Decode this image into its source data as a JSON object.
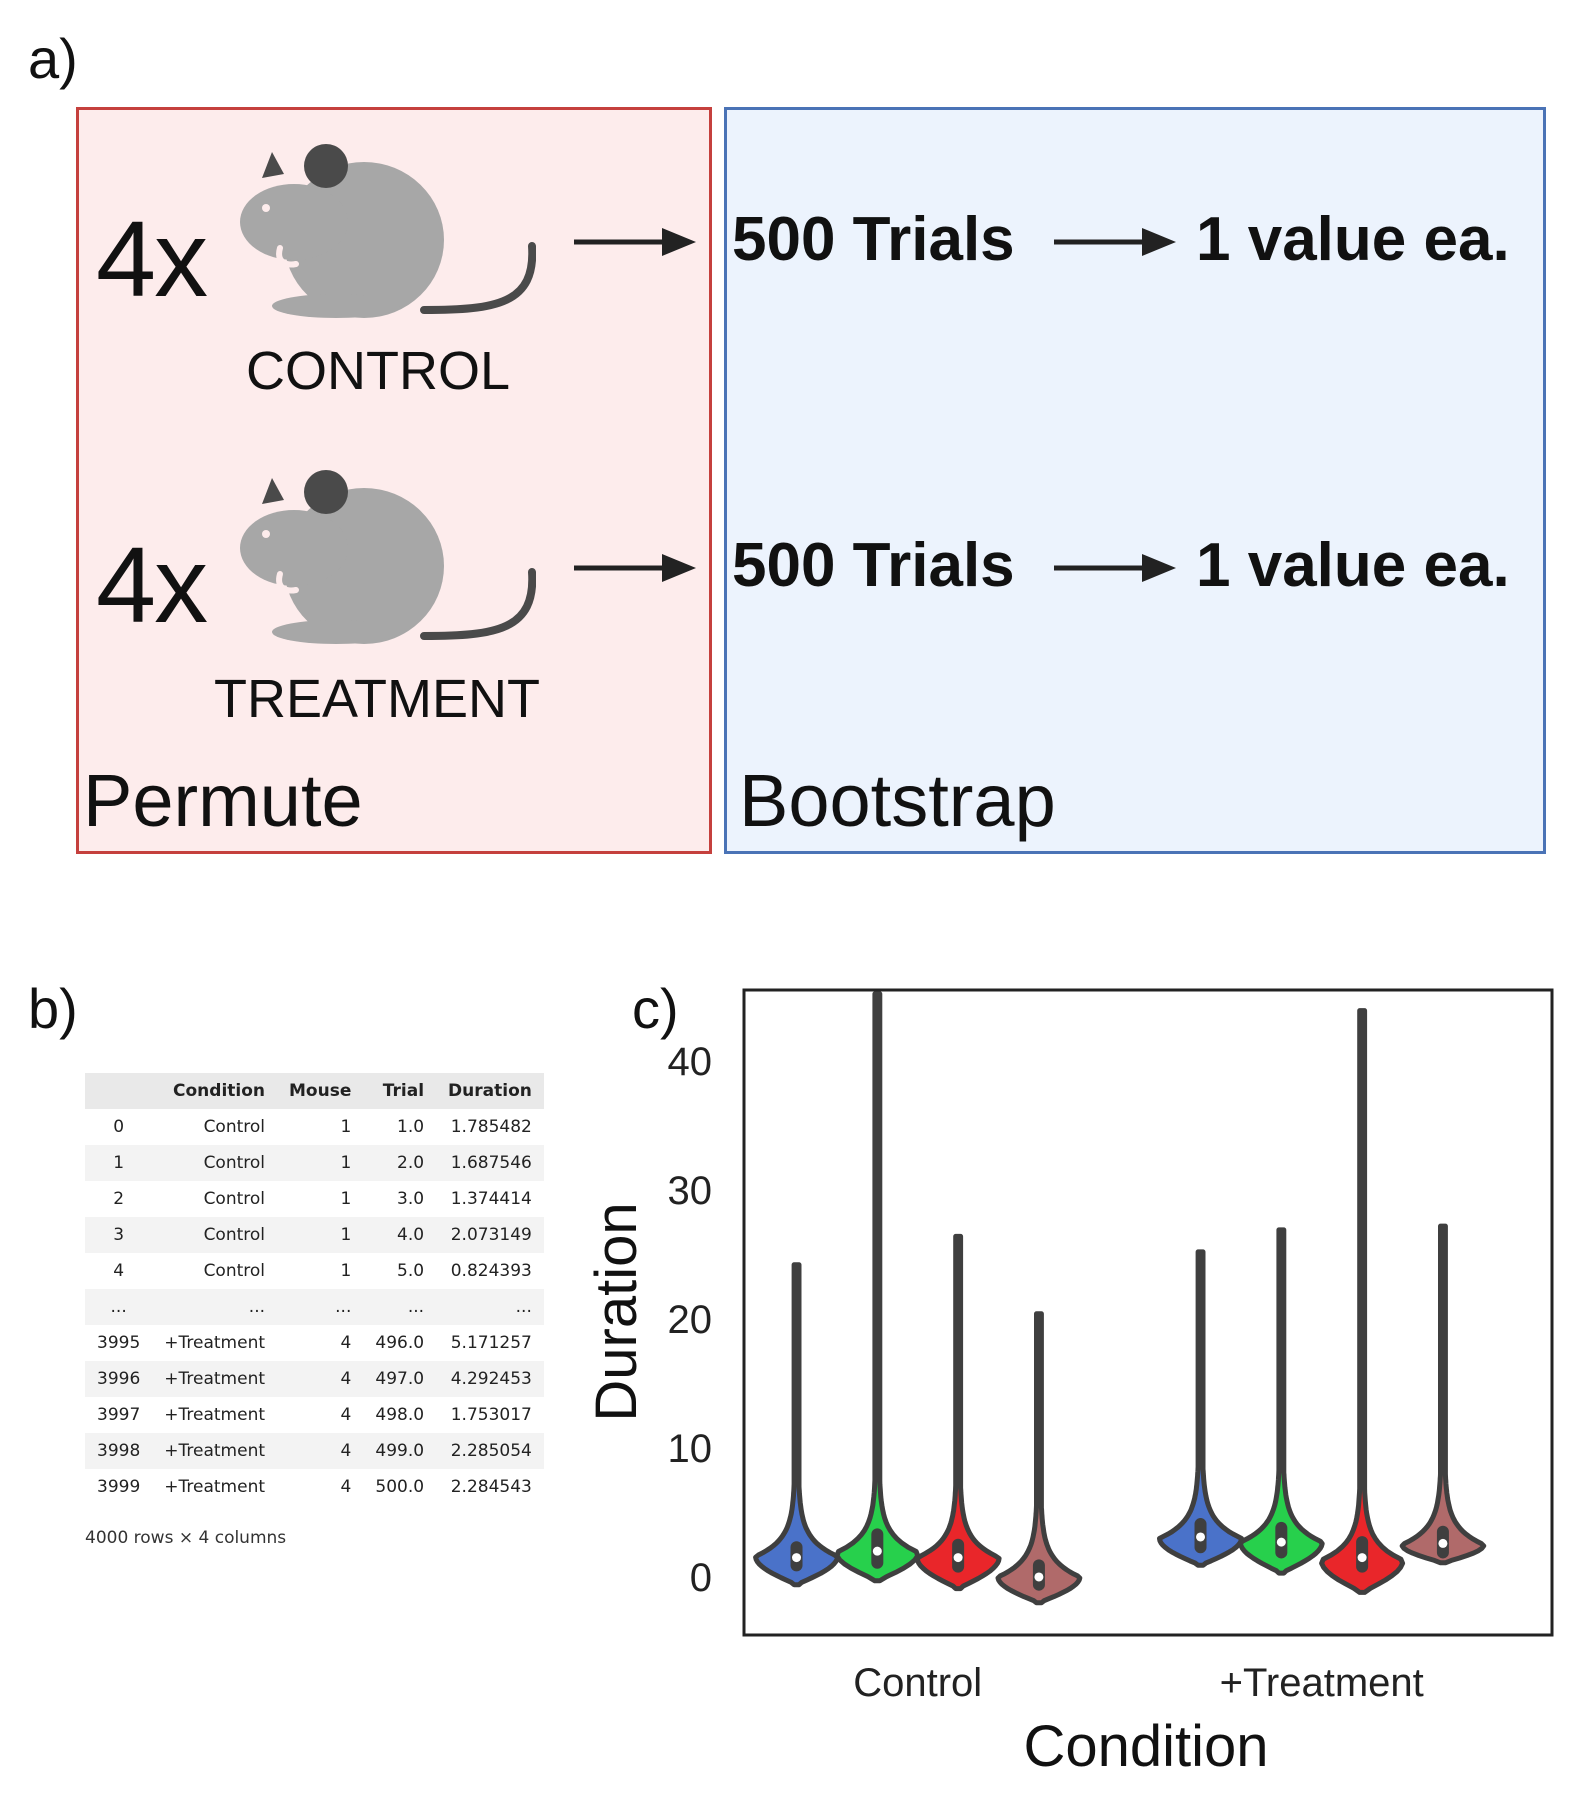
{
  "panel_a": {
    "letter": "a)",
    "permute_label": "Permute",
    "bootstrap_label": "Bootstrap",
    "groups": [
      {
        "count": "4x",
        "name": "CONTROL",
        "trials": "500 Trials",
        "result": "1 value ea.",
        "icon": "mouse-icon"
      },
      {
        "count": "4x",
        "name": "TREATMENT",
        "trials": "500 Trials",
        "result": "1 value ea.",
        "icon": "mouse-icon"
      }
    ],
    "colors": {
      "permute_fill": "#fdecec",
      "permute_border": "#c5403d",
      "bootstrap_fill": "#ecf3fd",
      "bootstrap_border": "#4a73b6",
      "mouse_body": "#a7a7a7",
      "mouse_ear": "#4a4a4a"
    }
  },
  "panel_b": {
    "letter": "b)",
    "columns": [
      "",
      "Condition",
      "Mouse",
      "Trial",
      "Duration"
    ],
    "rows": [
      [
        "0",
        "Control",
        "1",
        "1.0",
        "1.785482"
      ],
      [
        "1",
        "Control",
        "1",
        "2.0",
        "1.687546"
      ],
      [
        "2",
        "Control",
        "1",
        "3.0",
        "1.374414"
      ],
      [
        "3",
        "Control",
        "1",
        "4.0",
        "2.073149"
      ],
      [
        "4",
        "Control",
        "1",
        "5.0",
        "0.824393"
      ],
      [
        "...",
        "...",
        "...",
        "...",
        "..."
      ],
      [
        "3995",
        "+Treatment",
        "4",
        "496.0",
        "5.171257"
      ],
      [
        "3996",
        "+Treatment",
        "4",
        "497.0",
        "4.292453"
      ],
      [
        "3997",
        "+Treatment",
        "4",
        "498.0",
        "1.753017"
      ],
      [
        "3998",
        "+Treatment",
        "4",
        "499.0",
        "2.285054"
      ],
      [
        "3999",
        "+Treatment",
        "4",
        "500.0",
        "2.284543"
      ]
    ],
    "shape_text": "4000 rows × 4 columns"
  },
  "panel_c": {
    "letter": "c)"
  },
  "chart_data": {
    "type": "violin",
    "title": "",
    "xlabel": "Condition",
    "ylabel": "Duration",
    "categories": [
      "Control",
      "+Treatment"
    ],
    "ylim": [
      -4.5,
      45.5
    ],
    "yticks": [
      0,
      10,
      20,
      30,
      40
    ],
    "grid": false,
    "legend": "none",
    "series": [
      {
        "category": "Control",
        "color": "#4a72c9",
        "median": 1.5,
        "q1": 0.9,
        "q3": 2.3,
        "peak": 1.6,
        "min": -0.6,
        "max": 24.2
      },
      {
        "category": "Control",
        "color": "#27d04c",
        "median": 2.0,
        "q1": 1.1,
        "q3": 3.3,
        "peak": 1.9,
        "min": -0.3,
        "max": 45.2
      },
      {
        "category": "Control",
        "color": "#e9262a",
        "median": 1.5,
        "q1": 0.8,
        "q3": 2.5,
        "peak": 1.5,
        "min": -0.9,
        "max": 26.4
      },
      {
        "category": "Control",
        "color": "#b06a6a",
        "median": 0.0,
        "q1": -0.6,
        "q3": 0.9,
        "peak": 0.0,
        "min": -2.0,
        "max": 20.4
      },
      {
        "category": "+Treatment",
        "color": "#4a72c9",
        "median": 3.1,
        "q1": 2.3,
        "q3": 4.1,
        "peak": 3.0,
        "min": 0.9,
        "max": 25.2
      },
      {
        "category": "+Treatment",
        "color": "#27d04c",
        "median": 2.7,
        "q1": 1.9,
        "q3": 3.8,
        "peak": 2.7,
        "min": 0.3,
        "max": 26.9
      },
      {
        "category": "+Treatment",
        "color": "#e9262a",
        "median": 1.5,
        "q1": 0.8,
        "q3": 2.7,
        "peak": 1.3,
        "min": -1.2,
        "max": 43.9
      },
      {
        "category": "+Treatment",
        "color": "#b06a6a",
        "median": 2.6,
        "q1": 1.9,
        "q3": 3.5,
        "peak": 2.5,
        "min": 1.1,
        "max": 27.2
      }
    ]
  }
}
